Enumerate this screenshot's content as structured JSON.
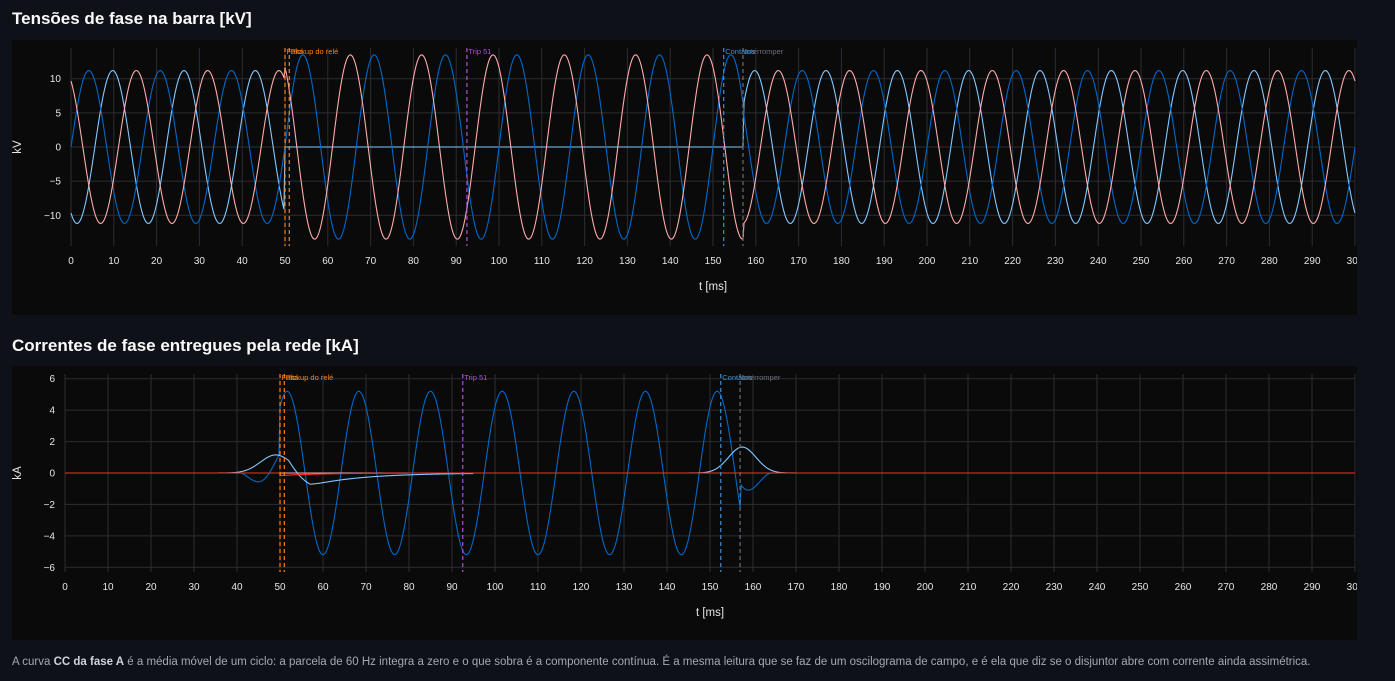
{
  "charts_section": {
    "voltage_title": "Tensões de fase na barra [kV]",
    "current_title": "Correntes de fase entregues pela rede [kA]"
  },
  "caption": {
    "pre": "A curva ",
    "bold": "CC da fase A",
    "post": " é a média móvel de um ciclo: a parcela de 60 Hz integra a zero e o que sobra é a componente contínua. É a mesma leitura que se faz de um oscilograma de campo, e é ela que diz se o disjuntor abre com corrente ainda assimétrica."
  },
  "colors": {
    "phase_a": "#83c9ff",
    "phase_b": "#0068c9",
    "phase_c": "#ffabab",
    "dc_a": "#ff2b2b",
    "grid": "#2a2d33",
    "axis_text": "#e6e6e6",
    "marker_pickup": "#ff7f0e",
    "marker_trip": "#b04fd6",
    "marker_contacts": "#3d8fd8",
    "marker_interrupt": "#6b6f78"
  },
  "chart_data": [
    {
      "type": "line",
      "title": "Tensões de fase na barra [kV]",
      "xlabel": "t [ms]",
      "ylabel": "kV",
      "xlim": [
        0,
        300
      ],
      "ylim": [
        -14.5,
        14.5
      ],
      "xticks": [
        0,
        10,
        20,
        30,
        40,
        50,
        60,
        70,
        80,
        90,
        100,
        110,
        120,
        130,
        140,
        150,
        160,
        170,
        180,
        190,
        200,
        210,
        220,
        230,
        240,
        250,
        260,
        270,
        280,
        290,
        300
      ],
      "yticks": [
        -10,
        -5,
        0,
        5,
        10
      ],
      "grid": true,
      "legend": "none",
      "signals": {
        "frequency_hz": 60,
        "prefault_peak": 11.2,
        "fault_start_ms": 50,
        "fault_end_ms": 157,
        "fault_peak": 13.5
      },
      "markers": [
        {
          "t": 50.0,
          "label": "Falta",
          "kind": "pickup"
        },
        {
          "t": 51.0,
          "label": "Pickup do relé",
          "kind": "pickup"
        },
        {
          "t": 92.5,
          "label": "Trip 51",
          "kind": "trip"
        },
        {
          "t": 152.5,
          "label": "Contatos",
          "kind": "contacts"
        },
        {
          "t": 157.0,
          "label": "Interromper",
          "kind": "interrupt"
        }
      ]
    },
    {
      "type": "line",
      "title": "Correntes de fase entregues pela rede [kA]",
      "xlabel": "t [ms]",
      "ylabel": "kA",
      "xlim": [
        0,
        300
      ],
      "ylim": [
        -6.3,
        6.3
      ],
      "xticks": [
        0,
        10,
        20,
        30,
        40,
        50,
        60,
        70,
        80,
        90,
        100,
        110,
        120,
        130,
        140,
        150,
        160,
        170,
        180,
        190,
        200,
        210,
        220,
        230,
        240,
        250,
        260,
        270,
        280,
        290,
        300
      ],
      "yticks": [
        -6,
        -4,
        -2,
        0,
        2,
        4,
        6
      ],
      "grid": true,
      "legend": "none",
      "signals": {
        "frequency_hz": 60,
        "fault_start_ms": 50,
        "fault_end_ms": 157,
        "fault_peak": 5.2,
        "dc_offset_initial": -0.8
      },
      "markers": [
        {
          "t": 50.0,
          "label": "Falta",
          "kind": "pickup"
        },
        {
          "t": 51.0,
          "label": "Pickup do relé",
          "kind": "pickup"
        },
        {
          "t": 92.5,
          "label": "Trip 51",
          "kind": "trip"
        },
        {
          "t": 152.5,
          "label": "Contatos",
          "kind": "contacts"
        },
        {
          "t": 157.0,
          "label": "Interromper",
          "kind": "interrupt"
        }
      ]
    }
  ]
}
